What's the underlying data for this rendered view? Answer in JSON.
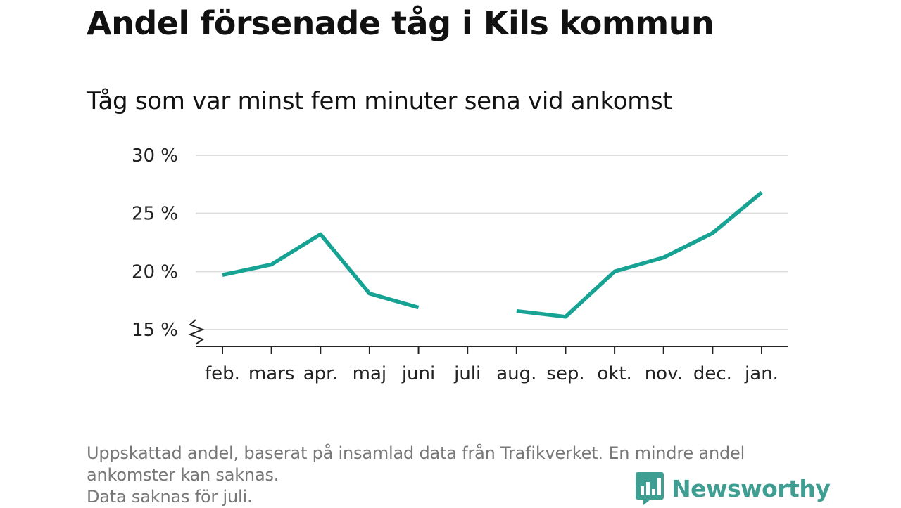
{
  "chart_data": {
    "type": "line",
    "title": "Andel försenade tåg i Kils kommun",
    "subtitle": "Tåg som var minst fem minuter sena vid ankomst",
    "categories": [
      "feb.",
      "mars",
      "apr.",
      "maj",
      "juni",
      "juli",
      "aug.",
      "sep.",
      "okt.",
      "nov.",
      "dec.",
      "jan."
    ],
    "series": [
      {
        "values": [
          19.7,
          20.6,
          23.2,
          18.1,
          16.9,
          null,
          16.6,
          16.1,
          20.0,
          21.2,
          23.3,
          26.8
        ]
      }
    ],
    "y_ticks": [
      "15 %",
      "20 %",
      "25 %",
      "30 %"
    ],
    "y_tick_values": [
      15,
      20,
      25,
      30
    ],
    "ylim": [
      13.7,
      30
    ],
    "y_axis_break": true,
    "grid": "horizontal",
    "line_color": "#16a394"
  },
  "footnote": {
    "lines": [
      "Uppskattad andel, baserat på insamlad data från Trafikverket. En mindre andel",
      "ankomster kan saknas.",
      "Data saknas för juli."
    ]
  },
  "logo": {
    "name": "Newsworthy",
    "icon": "newsworthy-chart-logo-icon",
    "color": "#3f9e92"
  }
}
